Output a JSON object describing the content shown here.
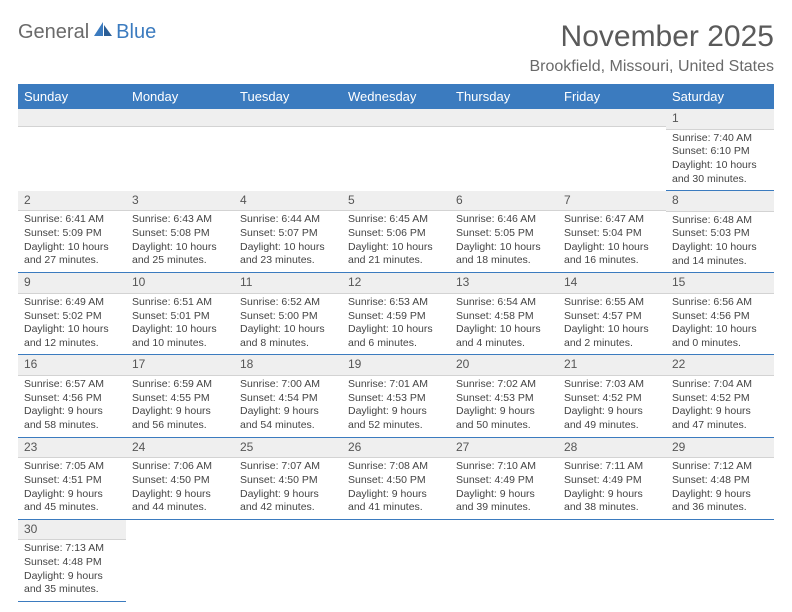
{
  "logo": {
    "part1": "General",
    "part2": "Blue"
  },
  "title": "November 2025",
  "location": "Brookfield, Missouri, United States",
  "colors": {
    "header_bg": "#3b7bbf",
    "header_text": "#ffffff",
    "daynum_bg": "#efefef",
    "border": "#3b7bbf",
    "text": "#444444"
  },
  "weekdays": [
    "Sunday",
    "Monday",
    "Tuesday",
    "Wednesday",
    "Thursday",
    "Friday",
    "Saturday"
  ],
  "first_day_index": 6,
  "days": [
    {
      "n": 1,
      "sunrise": "7:40 AM",
      "sunset": "6:10 PM",
      "daylight": "10 hours and 30 minutes."
    },
    {
      "n": 2,
      "sunrise": "6:41 AM",
      "sunset": "5:09 PM",
      "daylight": "10 hours and 27 minutes."
    },
    {
      "n": 3,
      "sunrise": "6:43 AM",
      "sunset": "5:08 PM",
      "daylight": "10 hours and 25 minutes."
    },
    {
      "n": 4,
      "sunrise": "6:44 AM",
      "sunset": "5:07 PM",
      "daylight": "10 hours and 23 minutes."
    },
    {
      "n": 5,
      "sunrise": "6:45 AM",
      "sunset": "5:06 PM",
      "daylight": "10 hours and 21 minutes."
    },
    {
      "n": 6,
      "sunrise": "6:46 AM",
      "sunset": "5:05 PM",
      "daylight": "10 hours and 18 minutes."
    },
    {
      "n": 7,
      "sunrise": "6:47 AM",
      "sunset": "5:04 PM",
      "daylight": "10 hours and 16 minutes."
    },
    {
      "n": 8,
      "sunrise": "6:48 AM",
      "sunset": "5:03 PM",
      "daylight": "10 hours and 14 minutes."
    },
    {
      "n": 9,
      "sunrise": "6:49 AM",
      "sunset": "5:02 PM",
      "daylight": "10 hours and 12 minutes."
    },
    {
      "n": 10,
      "sunrise": "6:51 AM",
      "sunset": "5:01 PM",
      "daylight": "10 hours and 10 minutes."
    },
    {
      "n": 11,
      "sunrise": "6:52 AM",
      "sunset": "5:00 PM",
      "daylight": "10 hours and 8 minutes."
    },
    {
      "n": 12,
      "sunrise": "6:53 AM",
      "sunset": "4:59 PM",
      "daylight": "10 hours and 6 minutes."
    },
    {
      "n": 13,
      "sunrise": "6:54 AM",
      "sunset": "4:58 PM",
      "daylight": "10 hours and 4 minutes."
    },
    {
      "n": 14,
      "sunrise": "6:55 AM",
      "sunset": "4:57 PM",
      "daylight": "10 hours and 2 minutes."
    },
    {
      "n": 15,
      "sunrise": "6:56 AM",
      "sunset": "4:56 PM",
      "daylight": "10 hours and 0 minutes."
    },
    {
      "n": 16,
      "sunrise": "6:57 AM",
      "sunset": "4:56 PM",
      "daylight": "9 hours and 58 minutes."
    },
    {
      "n": 17,
      "sunrise": "6:59 AM",
      "sunset": "4:55 PM",
      "daylight": "9 hours and 56 minutes."
    },
    {
      "n": 18,
      "sunrise": "7:00 AM",
      "sunset": "4:54 PM",
      "daylight": "9 hours and 54 minutes."
    },
    {
      "n": 19,
      "sunrise": "7:01 AM",
      "sunset": "4:53 PM",
      "daylight": "9 hours and 52 minutes."
    },
    {
      "n": 20,
      "sunrise": "7:02 AM",
      "sunset": "4:53 PM",
      "daylight": "9 hours and 50 minutes."
    },
    {
      "n": 21,
      "sunrise": "7:03 AM",
      "sunset": "4:52 PM",
      "daylight": "9 hours and 49 minutes."
    },
    {
      "n": 22,
      "sunrise": "7:04 AM",
      "sunset": "4:52 PM",
      "daylight": "9 hours and 47 minutes."
    },
    {
      "n": 23,
      "sunrise": "7:05 AM",
      "sunset": "4:51 PM",
      "daylight": "9 hours and 45 minutes."
    },
    {
      "n": 24,
      "sunrise": "7:06 AM",
      "sunset": "4:50 PM",
      "daylight": "9 hours and 44 minutes."
    },
    {
      "n": 25,
      "sunrise": "7:07 AM",
      "sunset": "4:50 PM",
      "daylight": "9 hours and 42 minutes."
    },
    {
      "n": 26,
      "sunrise": "7:08 AM",
      "sunset": "4:50 PM",
      "daylight": "9 hours and 41 minutes."
    },
    {
      "n": 27,
      "sunrise": "7:10 AM",
      "sunset": "4:49 PM",
      "daylight": "9 hours and 39 minutes."
    },
    {
      "n": 28,
      "sunrise": "7:11 AM",
      "sunset": "4:49 PM",
      "daylight": "9 hours and 38 minutes."
    },
    {
      "n": 29,
      "sunrise": "7:12 AM",
      "sunset": "4:48 PM",
      "daylight": "9 hours and 36 minutes."
    },
    {
      "n": 30,
      "sunrise": "7:13 AM",
      "sunset": "4:48 PM",
      "daylight": "9 hours and 35 minutes."
    }
  ],
  "labels": {
    "sunrise": "Sunrise:",
    "sunset": "Sunset:",
    "daylight": "Daylight:"
  }
}
